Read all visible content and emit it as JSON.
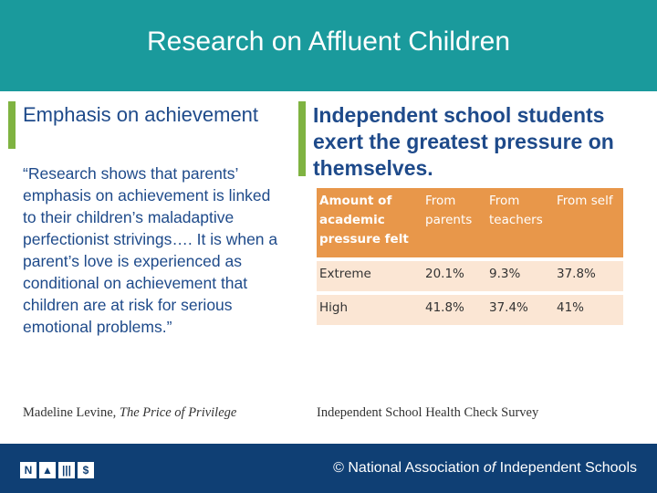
{
  "header": {
    "title": "Research on Affluent Children"
  },
  "left": {
    "heading": "Emphasis on achievement",
    "quote": "“Research shows that parents’ emphasis on achievement is linked to their children’s maladaptive perfectionist strivings…. It is when a parent’s love is experienced as conditional on achievement that children are at risk for serious emotional problems.”",
    "citation_author": "Madeline Levine, ",
    "citation_title": "The Price of Privilege"
  },
  "right": {
    "heading": "Independent school students exert the greatest pressure on themselves.",
    "table": {
      "headers": [
        "Amount of academic pressure felt",
        "From parents",
        "From teachers",
        "From self"
      ],
      "rows": [
        [
          "Extreme",
          "20.1%",
          "9.3%",
          "37.8%"
        ],
        [
          "High",
          "41.8%",
          "37.4%",
          "41%"
        ]
      ]
    },
    "citation": "Independent School Health Check Survey"
  },
  "footer": {
    "copyright": "© National Association ",
    "of": "of",
    "rest": " Independent Schools"
  },
  "colors": {
    "header": "#1a9a9c",
    "accent": "#7fb341",
    "heading_text": "#1e4a8a",
    "table_header": "#e8974a",
    "table_cell": "#fbe6d4",
    "footer": "#0f3f74"
  }
}
